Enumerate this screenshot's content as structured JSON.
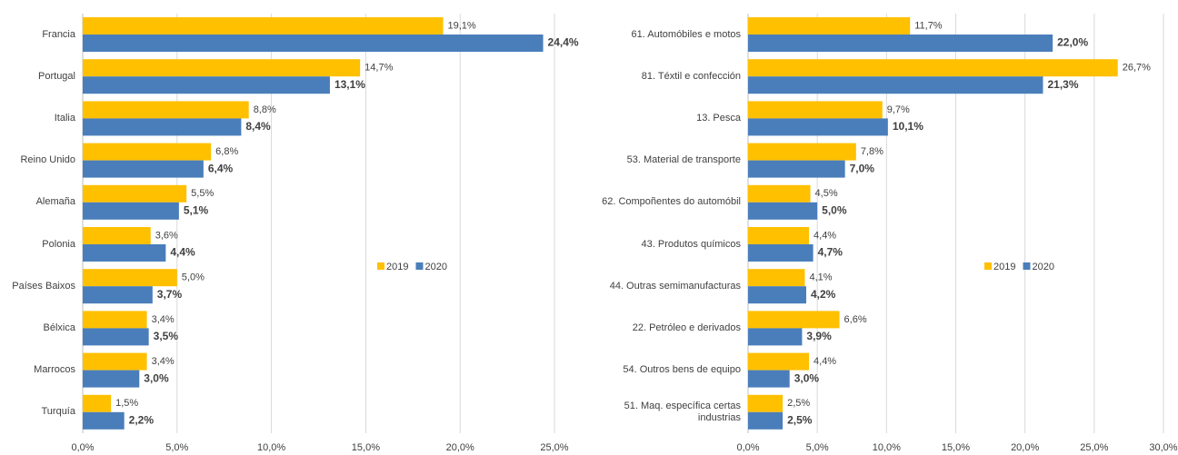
{
  "chart_data": [
    {
      "type": "bar",
      "orientation": "horizontal",
      "categories": [
        "Francia",
        "Portugal",
        "Italia",
        "Reino Unido",
        "Alemaña",
        "Polonia",
        "Países Baixos",
        "Bélxica",
        "Marrocos",
        "Turquía"
      ],
      "series": [
        {
          "name": "2019",
          "color": "#ffc000",
          "values": [
            19.1,
            14.7,
            8.8,
            6.8,
            5.5,
            3.6,
            5.0,
            3.4,
            3.4,
            1.5
          ],
          "value_labels": [
            "19,1%",
            "14,7%",
            "8,8%",
            "6,8%",
            "5,5%",
            "3,6%",
            "5,0%",
            "3,4%",
            "3,4%",
            "1,5%"
          ]
        },
        {
          "name": "2020",
          "color": "#4a7ebb",
          "values": [
            24.4,
            13.1,
            8.4,
            6.4,
            5.1,
            4.4,
            3.7,
            3.5,
            3.0,
            2.2
          ],
          "value_labels": [
            "24,4%",
            "13,1%",
            "8,4%",
            "6,4%",
            "5,1%",
            "4,4%",
            "3,7%",
            "3,5%",
            "3,0%",
            "2,2%"
          ]
        }
      ],
      "xlim": [
        0,
        25
      ],
      "xticks": [
        {
          "value": 0,
          "label": "0,0%"
        },
        {
          "value": 5,
          "label": "5,0%"
        },
        {
          "value": 10,
          "label": "10,0%"
        },
        {
          "value": 15,
          "label": "15,0%"
        },
        {
          "value": 20,
          "label": "20,0%"
        },
        {
          "value": 25,
          "label": "25,0%"
        }
      ],
      "grid": true,
      "legend": "center-right"
    },
    {
      "type": "bar",
      "orientation": "horizontal",
      "categories": [
        "61. Automóbiles e motos",
        "81. Téxtil e confección",
        "13. Pesca",
        "53. Material de transporte",
        "62. Compoñentes do automóbil",
        "43. Produtos químicos",
        "44. Outras semimanufacturas",
        "22. Petróleo e derivados",
        "54. Outros bens de equipo",
        "51. Maq. específica certas industrias"
      ],
      "series": [
        {
          "name": "2019",
          "color": "#ffc000",
          "values": [
            11.7,
            26.7,
            9.7,
            7.8,
            4.5,
            4.4,
            4.1,
            6.6,
            4.4,
            2.5
          ],
          "value_labels": [
            "11,7%",
            "26,7%",
            "9,7%",
            "7,8%",
            "4,5%",
            "4,4%",
            "4,1%",
            "6,6%",
            "4,4%",
            "2,5%"
          ]
        },
        {
          "name": "2020",
          "color": "#4a7ebb",
          "values": [
            22.0,
            21.3,
            10.1,
            7.0,
            5.0,
            4.7,
            4.2,
            3.9,
            3.0,
            2.5
          ],
          "value_labels": [
            "22,0%",
            "21,3%",
            "10,1%",
            "7,0%",
            "5,0%",
            "4,7%",
            "4,2%",
            "3,9%",
            "3,0%",
            "2,5%"
          ]
        }
      ],
      "xlim": [
        0,
        30
      ],
      "xticks": [
        {
          "value": 0,
          "label": "0,0%"
        },
        {
          "value": 5,
          "label": "5,0%"
        },
        {
          "value": 10,
          "label": "10,0%"
        },
        {
          "value": 15,
          "label": "15,0%"
        },
        {
          "value": 20,
          "label": "20,0%"
        },
        {
          "value": 25,
          "label": "25,0%"
        },
        {
          "value": 30,
          "label": "30,0%"
        }
      ],
      "grid": true,
      "legend": "center-right"
    }
  ]
}
